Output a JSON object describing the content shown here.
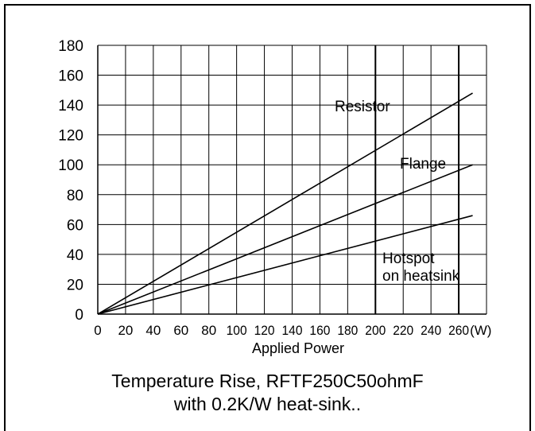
{
  "chart_data": {
    "type": "line",
    "x_ticks": [
      0,
      20,
      40,
      60,
      80,
      100,
      120,
      140,
      160,
      180,
      200,
      220,
      240,
      260
    ],
    "x_unit_label": "(W)",
    "xlabel": "Applied Power",
    "xlim": [
      0,
      280
    ],
    "y_ticks": [
      0,
      20,
      40,
      60,
      80,
      100,
      120,
      140,
      160,
      180
    ],
    "ylim": [
      0,
      180
    ],
    "grid": true,
    "title_line1": "Temperature Rise, RFTF250C50ohmF",
    "title_line2": "with 0.2K/W heat-sink..",
    "series": [
      {
        "name": "Resistor",
        "points": [
          [
            0,
            0
          ],
          [
            270,
            148
          ]
        ],
        "color": "#000000"
      },
      {
        "name": "Flange",
        "points": [
          [
            0,
            0
          ],
          [
            270,
            100
          ]
        ],
        "color": "#000000"
      },
      {
        "name": "Hotspot on heatsink",
        "points": [
          [
            0,
            0
          ],
          [
            270,
            66
          ]
        ],
        "color": "#000000"
      }
    ],
    "series_label_lines": {
      "Resistor": [
        "Resistor"
      ],
      "Flange": [
        "Flange"
      ],
      "Hotspot on heatsink": [
        "Hotspot",
        "on heatsink"
      ]
    }
  }
}
